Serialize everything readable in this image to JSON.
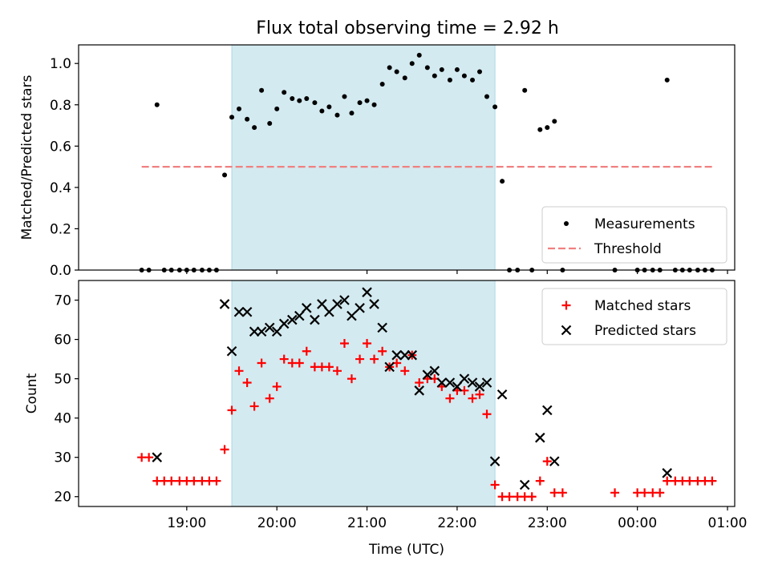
{
  "title": "Flux total observing time = 2.92 h",
  "chart_data": [
    {
      "type": "scatter",
      "ylabel": "Matched/Predicted stars",
      "ylim": [
        0,
        1.09
      ],
      "yticks": [
        0.0,
        0.2,
        0.4,
        0.6,
        0.8,
        1.0
      ],
      "ytick_labels": [
        "0.0",
        "0.2",
        "0.4",
        "0.6",
        "0.8",
        "1.0"
      ],
      "shaded_interval": {
        "start": 19.5,
        "end": 22.42,
        "color": "#d3eaf0"
      },
      "legend": {
        "position": "lower right",
        "entries": [
          "Measurements",
          "Threshold"
        ]
      },
      "series": [
        {
          "name": "Measurements",
          "color": "#000000",
          "marker": "dot",
          "points": [
            [
              18.5,
              0
            ],
            [
              18.58,
              0
            ],
            [
              18.67,
              0.8
            ],
            [
              18.75,
              0
            ],
            [
              18.83,
              0
            ],
            [
              18.92,
              0
            ],
            [
              19.0,
              0
            ],
            [
              19.08,
              0
            ],
            [
              19.17,
              0
            ],
            [
              19.25,
              0
            ],
            [
              19.33,
              0
            ],
            [
              19.42,
              0.46
            ],
            [
              19.5,
              0.74
            ],
            [
              19.58,
              0.78
            ],
            [
              19.67,
              0.73
            ],
            [
              19.75,
              0.69
            ],
            [
              19.83,
              0.87
            ],
            [
              19.92,
              0.71
            ],
            [
              20.0,
              0.78
            ],
            [
              20.08,
              0.86
            ],
            [
              20.17,
              0.83
            ],
            [
              20.25,
              0.82
            ],
            [
              20.33,
              0.83
            ],
            [
              20.42,
              0.81
            ],
            [
              20.5,
              0.77
            ],
            [
              20.58,
              0.79
            ],
            [
              20.67,
              0.75
            ],
            [
              20.75,
              0.84
            ],
            [
              20.83,
              0.76
            ],
            [
              20.92,
              0.81
            ],
            [
              21.0,
              0.82
            ],
            [
              21.08,
              0.8
            ],
            [
              21.17,
              0.9
            ],
            [
              21.25,
              0.98
            ],
            [
              21.33,
              0.96
            ],
            [
              21.42,
              0.93
            ],
            [
              21.5,
              1.0
            ],
            [
              21.58,
              1.04
            ],
            [
              21.67,
              0.98
            ],
            [
              21.75,
              0.94
            ],
            [
              21.83,
              0.97
            ],
            [
              21.92,
              0.92
            ],
            [
              22.0,
              0.97
            ],
            [
              22.08,
              0.94
            ],
            [
              22.17,
              0.92
            ],
            [
              22.25,
              0.96
            ],
            [
              22.33,
              0.84
            ],
            [
              22.42,
              0.79
            ],
            [
              22.5,
              0.43
            ],
            [
              22.58,
              0
            ],
            [
              22.67,
              0
            ],
            [
              22.75,
              0.87
            ],
            [
              22.83,
              0
            ],
            [
              22.92,
              0.68
            ],
            [
              23.0,
              0.69
            ],
            [
              23.08,
              0.72
            ],
            [
              23.17,
              0
            ],
            [
              23.75,
              0
            ],
            [
              24.0,
              0
            ],
            [
              24.08,
              0
            ],
            [
              24.17,
              0
            ],
            [
              24.25,
              0
            ],
            [
              24.33,
              0.92
            ],
            [
              24.42,
              0
            ],
            [
              24.5,
              0
            ],
            [
              24.58,
              0
            ],
            [
              24.67,
              0
            ],
            [
              24.75,
              0
            ],
            [
              24.83,
              0
            ]
          ]
        },
        {
          "name": "Threshold",
          "color": "#f08080",
          "style": "dashed",
          "points": [
            [
              18.5,
              0.5
            ],
            [
              24.83,
              0.5
            ]
          ]
        }
      ]
    },
    {
      "type": "scatter",
      "xlabel": "Time (UTC)",
      "ylabel": "Count",
      "ylim": [
        17.5,
        75
      ],
      "yticks": [
        20,
        30,
        40,
        50,
        60,
        70
      ],
      "ytick_labels": [
        "20",
        "30",
        "40",
        "50",
        "60",
        "70"
      ],
      "xlim": [
        17.8,
        25.08
      ],
      "xticks": [
        19,
        20,
        21,
        22,
        23,
        24,
        25
      ],
      "xtick_labels": [
        "19:00",
        "20:00",
        "21:00",
        "22:00",
        "23:00",
        "00:00",
        "01:00"
      ],
      "shaded_interval": {
        "start": 19.5,
        "end": 22.42,
        "color": "#d3eaf0"
      },
      "legend": {
        "position": "upper right",
        "entries": [
          "Matched stars",
          "Predicted stars"
        ]
      },
      "series": [
        {
          "name": "Matched stars",
          "color": "#ff0000",
          "marker": "plus",
          "points": [
            [
              18.5,
              30
            ],
            [
              18.58,
              30
            ],
            [
              18.67,
              24
            ],
            [
              18.75,
              24
            ],
            [
              18.83,
              24
            ],
            [
              18.92,
              24
            ],
            [
              19.0,
              24
            ],
            [
              19.08,
              24
            ],
            [
              19.17,
              24
            ],
            [
              19.25,
              24
            ],
            [
              19.33,
              24
            ],
            [
              19.42,
              32
            ],
            [
              19.5,
              42
            ],
            [
              19.58,
              52
            ],
            [
              19.67,
              49
            ],
            [
              19.75,
              43
            ],
            [
              19.83,
              54
            ],
            [
              19.92,
              45
            ],
            [
              20.0,
              48
            ],
            [
              20.08,
              55
            ],
            [
              20.17,
              54
            ],
            [
              20.25,
              54
            ],
            [
              20.33,
              57
            ],
            [
              20.42,
              53
            ],
            [
              20.5,
              53
            ],
            [
              20.58,
              53
            ],
            [
              20.67,
              52
            ],
            [
              20.75,
              59
            ],
            [
              20.83,
              50
            ],
            [
              20.92,
              55
            ],
            [
              21.0,
              59
            ],
            [
              21.08,
              55
            ],
            [
              21.17,
              57
            ],
            [
              21.25,
              53
            ],
            [
              21.33,
              54
            ],
            [
              21.42,
              52
            ],
            [
              21.5,
              56
            ],
            [
              21.58,
              49
            ],
            [
              21.67,
              50
            ],
            [
              21.75,
              50
            ],
            [
              21.83,
              48
            ],
            [
              21.92,
              45
            ],
            [
              22.0,
              47
            ],
            [
              22.08,
              47
            ],
            [
              22.17,
              45
            ],
            [
              22.25,
              46
            ],
            [
              22.33,
              41
            ],
            [
              22.42,
              23
            ],
            [
              22.5,
              20
            ],
            [
              22.58,
              20
            ],
            [
              22.67,
              20
            ],
            [
              22.75,
              20
            ],
            [
              22.83,
              20
            ],
            [
              22.92,
              24
            ],
            [
              23.0,
              29
            ],
            [
              23.08,
              21
            ],
            [
              23.17,
              21
            ],
            [
              23.75,
              21
            ],
            [
              24.0,
              21
            ],
            [
              24.08,
              21
            ],
            [
              24.17,
              21
            ],
            [
              24.25,
              21
            ],
            [
              24.33,
              24
            ],
            [
              24.42,
              24
            ],
            [
              24.5,
              24
            ],
            [
              24.58,
              24
            ],
            [
              24.67,
              24
            ],
            [
              24.75,
              24
            ],
            [
              24.83,
              24
            ]
          ]
        },
        {
          "name": "Predicted stars",
          "color": "#000000",
          "marker": "x",
          "points": [
            [
              18.67,
              30
            ],
            [
              19.42,
              69
            ],
            [
              19.5,
              57
            ],
            [
              19.58,
              67
            ],
            [
              19.67,
              67
            ],
            [
              19.75,
              62
            ],
            [
              19.83,
              62
            ],
            [
              19.92,
              63
            ],
            [
              20.0,
              62
            ],
            [
              20.08,
              64
            ],
            [
              20.17,
              65
            ],
            [
              20.25,
              66
            ],
            [
              20.33,
              68
            ],
            [
              20.42,
              65
            ],
            [
              20.5,
              69
            ],
            [
              20.58,
              67
            ],
            [
              20.67,
              69
            ],
            [
              20.75,
              70
            ],
            [
              20.83,
              66
            ],
            [
              20.92,
              68
            ],
            [
              21.0,
              72
            ],
            [
              21.08,
              69
            ],
            [
              21.17,
              63
            ],
            [
              21.25,
              53
            ],
            [
              21.33,
              56
            ],
            [
              21.42,
              56
            ],
            [
              21.5,
              56
            ],
            [
              21.58,
              47
            ],
            [
              21.67,
              51
            ],
            [
              21.75,
              52
            ],
            [
              21.83,
              49
            ],
            [
              21.92,
              49
            ],
            [
              22.0,
              48
            ],
            [
              22.08,
              50
            ],
            [
              22.17,
              49
            ],
            [
              22.25,
              48
            ],
            [
              22.33,
              49
            ],
            [
              22.42,
              29
            ],
            [
              22.5,
              46
            ],
            [
              22.75,
              23
            ],
            [
              22.92,
              35
            ],
            [
              23.0,
              42
            ],
            [
              23.08,
              29
            ],
            [
              24.33,
              26
            ]
          ]
        }
      ]
    }
  ]
}
